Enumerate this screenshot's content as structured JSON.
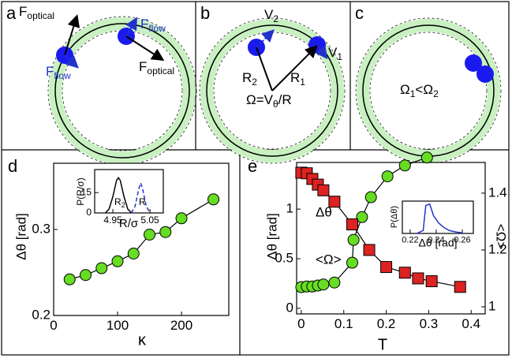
{
  "panels": [
    {
      "label": "a",
      "texts": [
        {
          "main": "F",
          "sub": "optical"
        },
        {
          "main": "F",
          "sub": "flow"
        },
        {
          "main": "F",
          "sub": "flow"
        },
        {
          "main": "F",
          "sub": "optical"
        }
      ]
    },
    {
      "label": "b",
      "texts": [
        {
          "main": "V",
          "sub": "2"
        },
        {
          "main": "V",
          "sub": "1"
        },
        {
          "main": "R",
          "sub": "2"
        },
        {
          "main": "R",
          "sub": "1"
        }
      ],
      "formula": {
        "pre": "Ω=V",
        "sub": "θ",
        "post": "/R"
      }
    },
    {
      "label": "c",
      "formula": {
        "a": "Ω",
        "a_sub": "1",
        "op": "<",
        "b": "Ω",
        "b_sub": "2"
      }
    }
  ],
  "chart_data": [
    {
      "type": "line",
      "label": "d",
      "x_label": "κ",
      "y_label": "Δθ [rad]",
      "xlim": [
        0,
        274
      ],
      "ylim": [
        0.2,
        0.377
      ],
      "xticks": [
        0,
        100,
        200
      ],
      "yticks": [
        0.2,
        0.3
      ],
      "series": [
        {
          "color": "#66dd22",
          "marker": "circle",
          "x": [
            25,
            50,
            75,
            100,
            125,
            150,
            175,
            200,
            250
          ],
          "values": [
            0.242,
            0.247,
            0.255,
            0.263,
            0.272,
            0.294,
            0.297,
            0.313,
            0.335
          ]
        }
      ]
    },
    {
      "type": "line",
      "x_label": "R/σ",
      "y_label": "P(R/σ)",
      "xlim": [
        4.901,
        5.086
      ],
      "ylim": [
        0,
        32
      ],
      "xticks": [
        4.95,
        5.05
      ],
      "yticks": [
        0,
        15
      ],
      "series": [
        {
          "color": "#000000",
          "x": [
            4.93,
            4.94,
            4.95,
            4.96,
            4.965,
            4.97,
            4.98,
            4.99,
            5.0
          ],
          "values": [
            0,
            3,
            12,
            24,
            26,
            24,
            12,
            3,
            0
          ]
        },
        {
          "color": "#2233cc",
          "dash": true,
          "x": [
            5.0,
            5.01,
            5.02,
            5.025,
            5.03,
            5.04,
            5.05
          ],
          "values": [
            0,
            5,
            18,
            22,
            18,
            5,
            0
          ]
        }
      ],
      "annotations": [
        {
          "text": "R",
          "sub": "2"
        },
        {
          "text": "R"
        }
      ]
    },
    {
      "type": "line",
      "label": "e",
      "x_label": "T",
      "y_label": "Δθ [rad]",
      "y2_label": "<Ω>",
      "xlim": [
        -0.011,
        0.433
      ],
      "ylim": [
        -0.056,
        1.47
      ],
      "y2lim": [
        0.975,
        1.508
      ],
      "xticks": [
        0,
        0.1,
        0.2,
        0.3,
        0.4
      ],
      "yticks": [
        0,
        0.5,
        1
      ],
      "y2ticks": [
        1,
        1.2,
        1.4
      ],
      "series": [
        {
          "name": "Δθ",
          "color": "#66dd22",
          "marker": "circle",
          "x": [
            0,
            0.013,
            0.026,
            0.039,
            0.052,
            0.078,
            0.12,
            0.123,
            0.143,
            0.164,
            0.203,
            0.244,
            0.296
          ],
          "values": [
            0.214,
            0.22,
            0.22,
            0.23,
            0.24,
            0.26,
            0.46,
            0.69,
            0.92,
            1.12,
            1.33,
            1.44,
            1.52
          ]
        },
        {
          "name": "<Ω>",
          "color": "#dd2222",
          "marker": "square",
          "axis": "y2",
          "x": [
            0,
            0.013,
            0.026,
            0.039,
            0.052,
            0.078,
            0.12,
            0.16,
            0.2,
            0.244,
            0.275,
            0.307,
            0.374
          ],
          "values": [
            1.472,
            1.47,
            1.45,
            1.43,
            1.41,
            1.37,
            1.29,
            1.2,
            1.14,
            1.12,
            1.1,
            1.09,
            1.07
          ]
        }
      ]
    },
    {
      "type": "line",
      "x_label": "Δθ [rad]",
      "y_label": "P(Δθ)",
      "xlim": [
        0.214,
        0.2685
      ],
      "ylim": [
        0,
        1.1
      ],
      "xticks": [
        0.22,
        0.24,
        0.26
      ],
      "series": [
        {
          "color": "#2233cc",
          "x": [
            0.225,
            0.23,
            0.232,
            0.235,
            0.238,
            0.242,
            0.246,
            0.25,
            0.255,
            0.26
          ],
          "values": [
            0,
            0.1,
            0.95,
            1,
            0.6,
            0.35,
            0.2,
            0.1,
            0.05,
            0.02
          ]
        }
      ]
    }
  ]
}
